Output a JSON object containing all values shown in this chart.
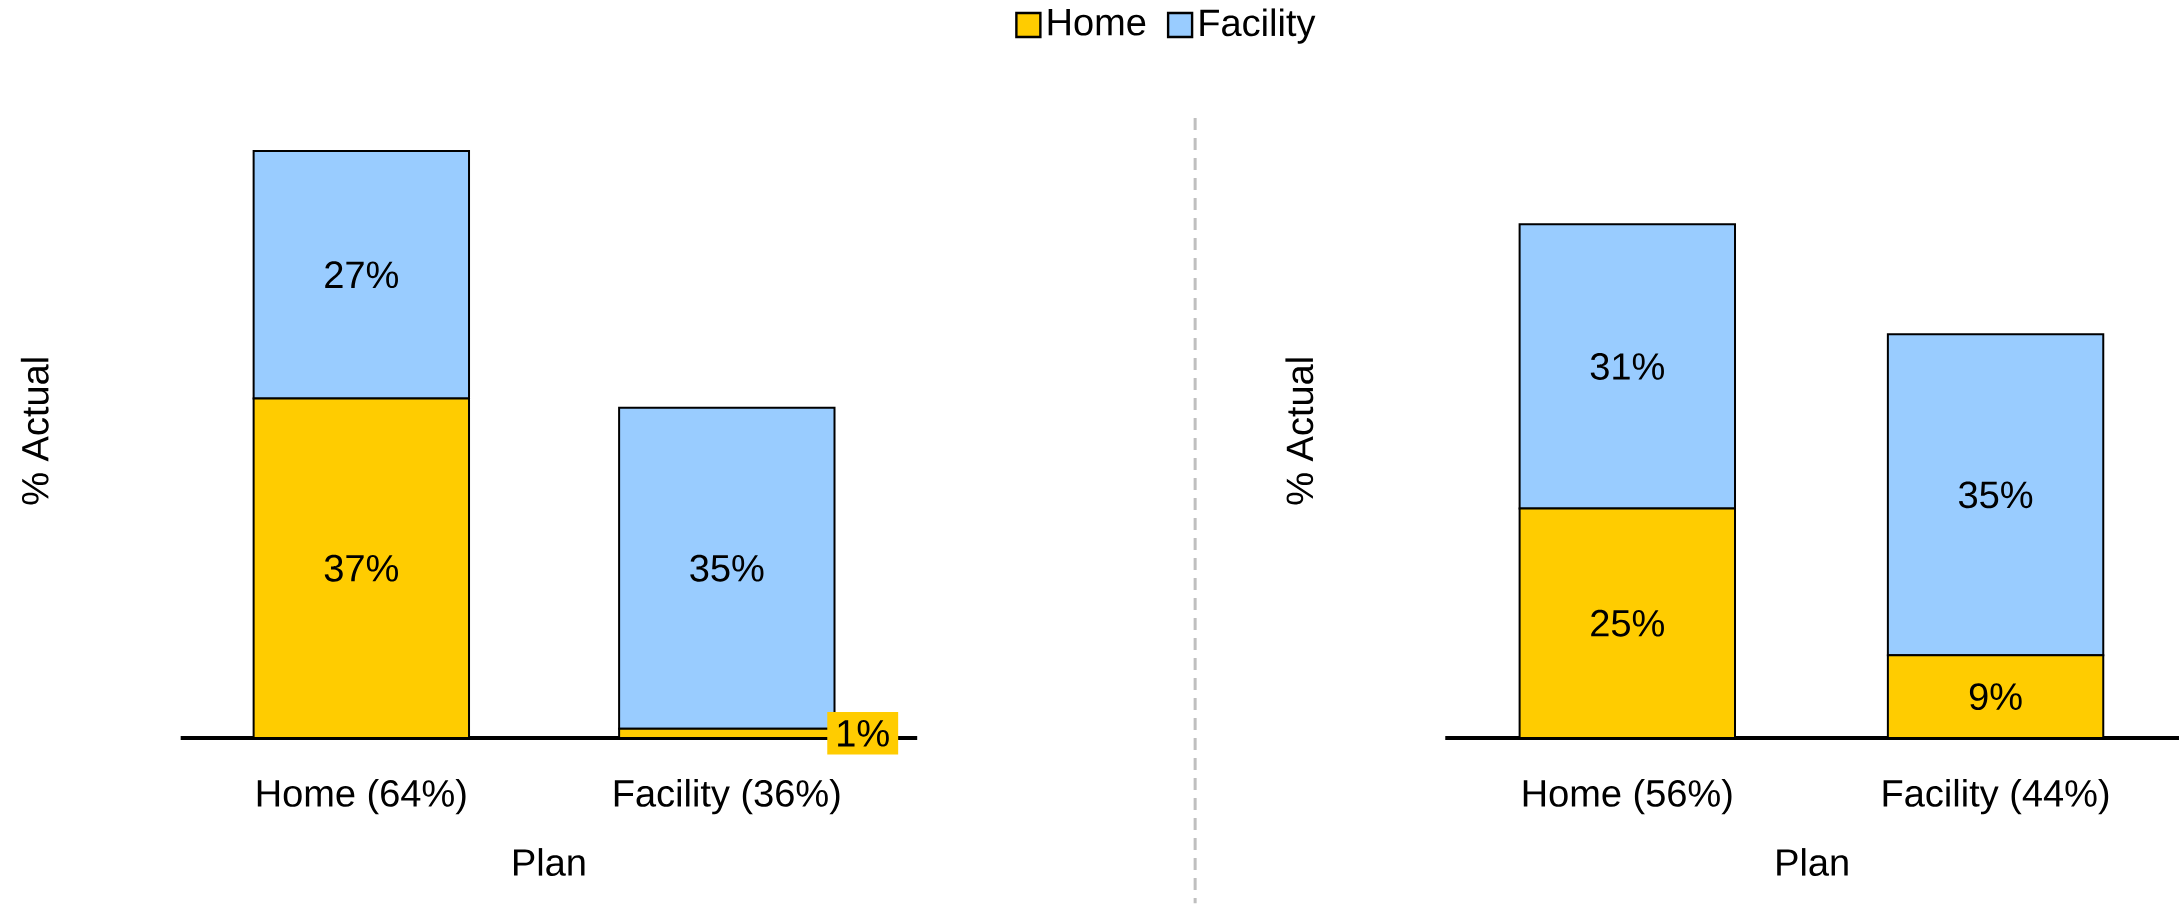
{
  "chart_data": [
    {
      "type": "bar",
      "stacked": true,
      "xlabel": "Plan",
      "ylabel": "% Actual",
      "categories": [
        "Home (64%)",
        "Facility (36%)"
      ],
      "series": [
        {
          "name": "Home",
          "color": "#ffcc00",
          "values": [
            37,
            1
          ],
          "value_labels": [
            "37%",
            "1%"
          ]
        },
        {
          "name": "Facility",
          "color": "#99ccff",
          "values": [
            27,
            35
          ],
          "value_labels": [
            "27%",
            "35%"
          ]
        }
      ],
      "legend": "top",
      "grid": false
    },
    {
      "type": "bar",
      "stacked": true,
      "xlabel": "Plan",
      "ylabel": "% Actual",
      "categories": [
        "Home (56%)",
        "Facility (44%)"
      ],
      "series": [
        {
          "color": "#ffcc00",
          "values": [
            25,
            9
          ],
          "value_labels": [
            "25%",
            "9%"
          ]
        },
        {
          "color": "#99ccff",
          "values": [
            31,
            35
          ],
          "value_labels": [
            "31%",
            "35%"
          ]
        }
      ],
      "legend": false,
      "grid": false
    }
  ]
}
